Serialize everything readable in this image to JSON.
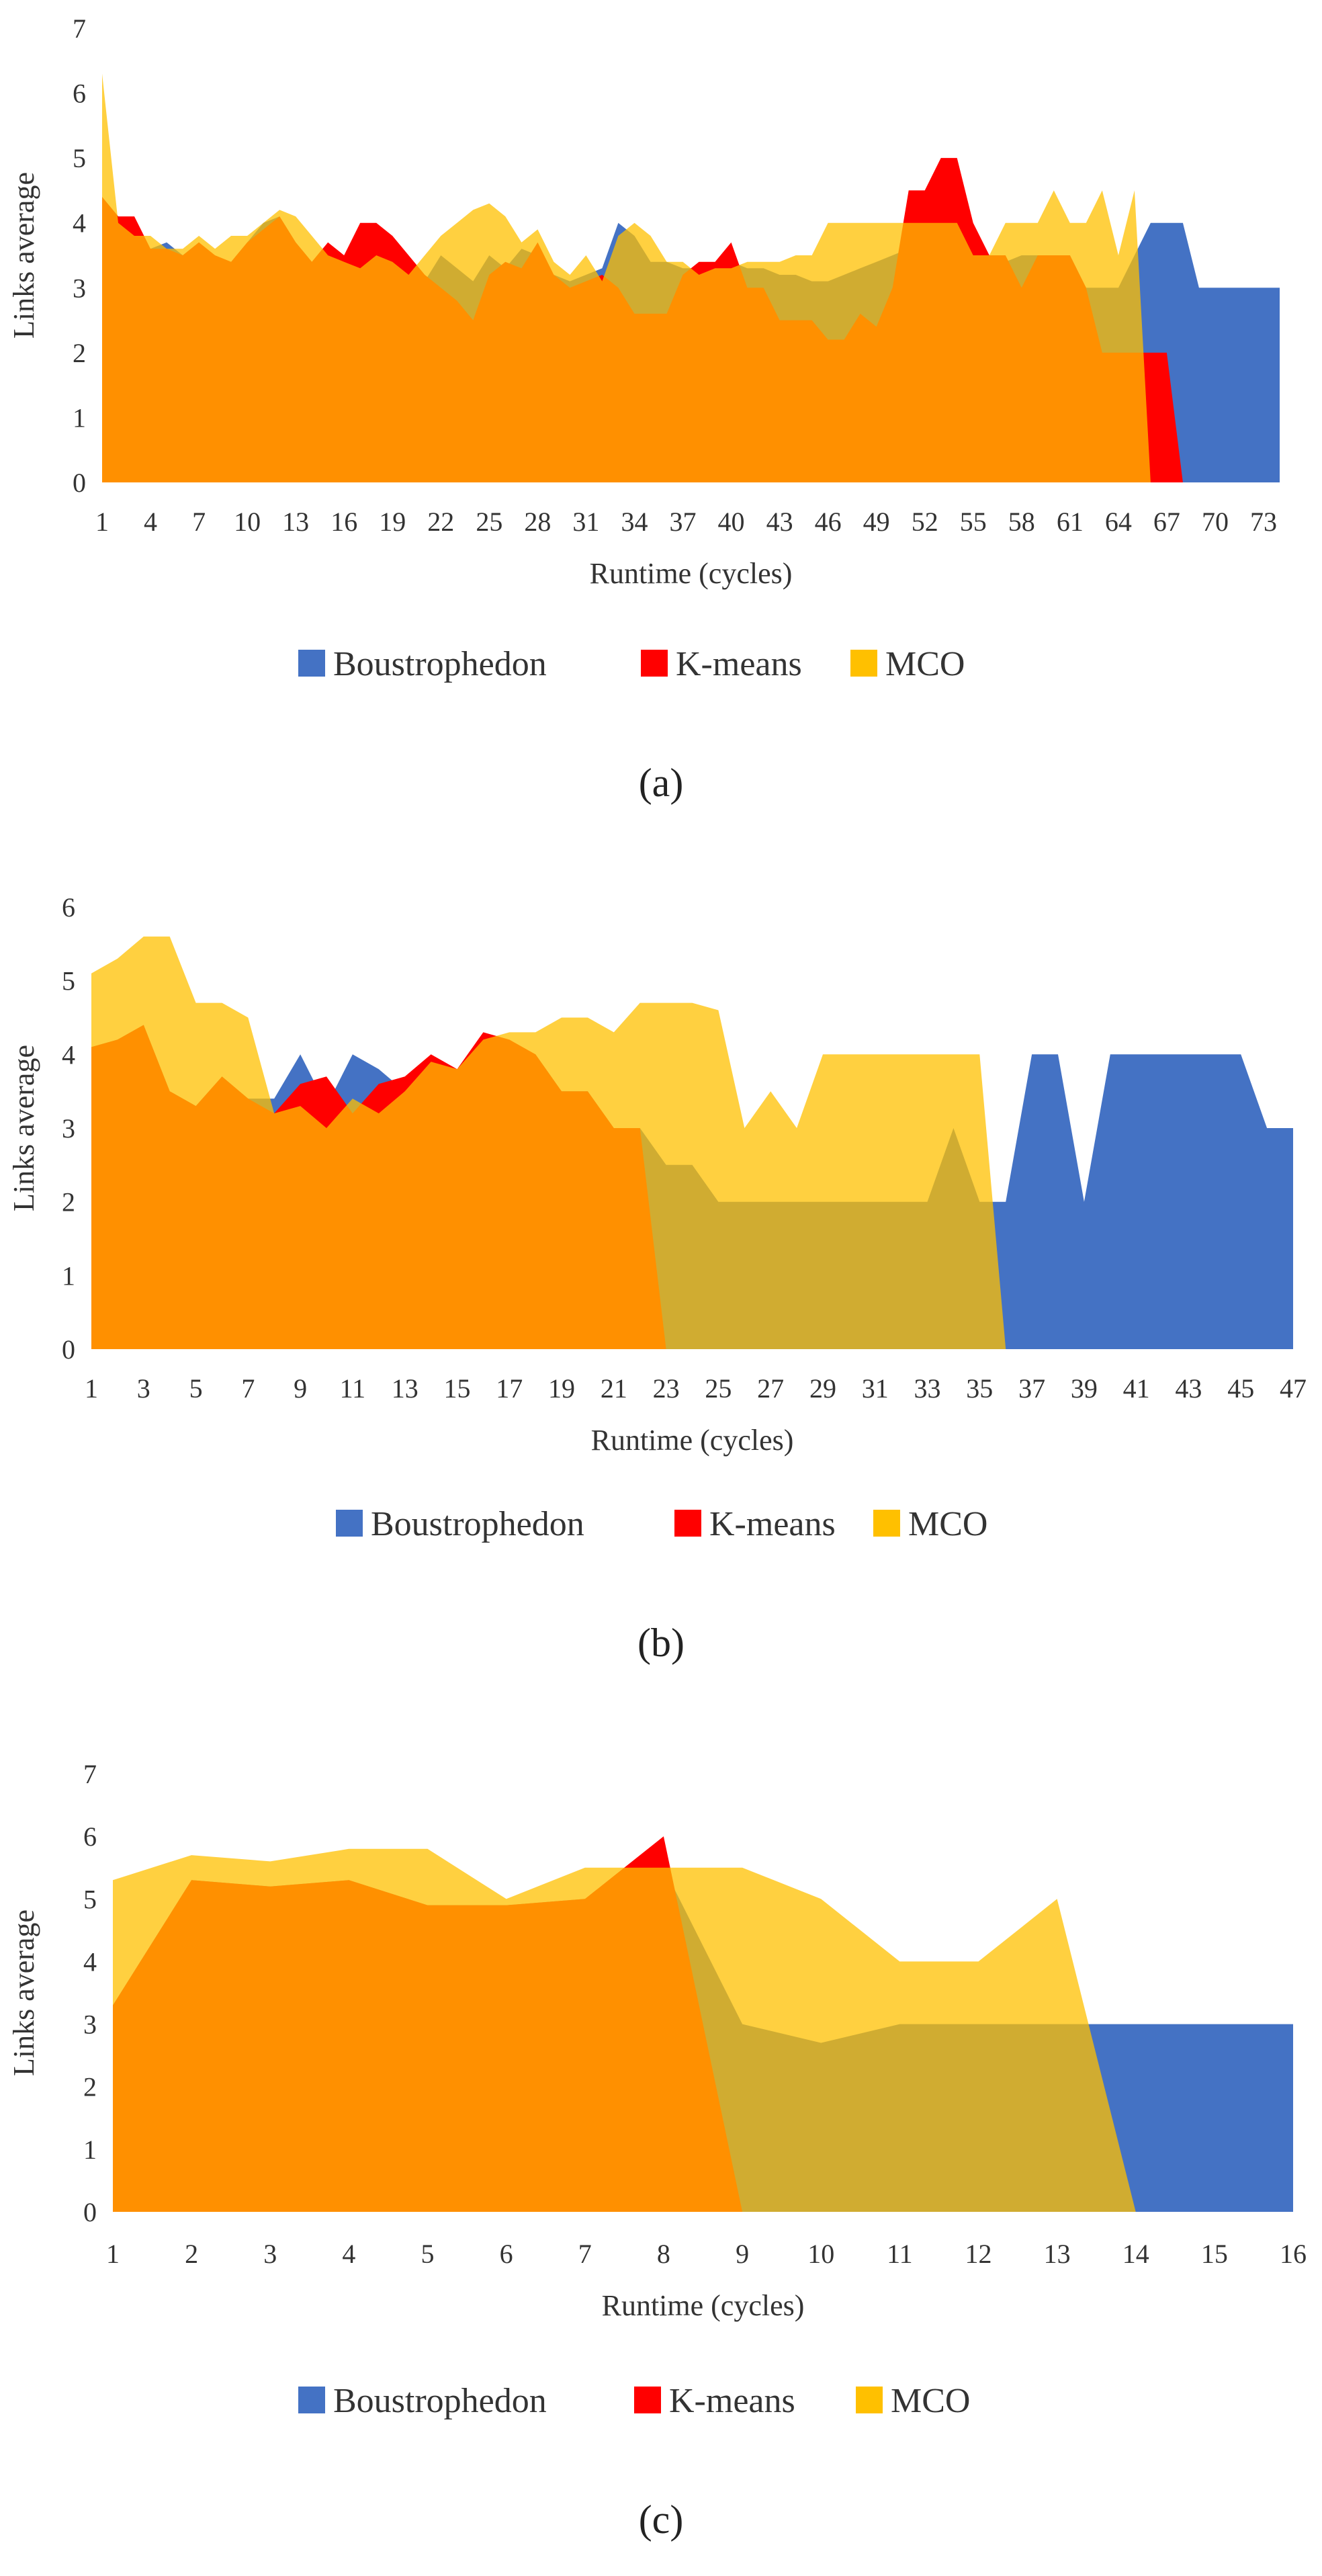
{
  "chart_data": [
    {
      "type": "area",
      "panel": "a",
      "caption": "(a)",
      "xlabel": "Runtime (cycles)",
      "ylabel": "Links average",
      "ylim": [
        0,
        7
      ],
      "yticks": [
        "0",
        "1",
        "2",
        "3",
        "4",
        "5",
        "6",
        "7"
      ],
      "xlim": [
        1,
        74
      ],
      "xtick_labels": [
        "1",
        "4",
        "7",
        "10",
        "13",
        "16",
        "19",
        "22",
        "25",
        "28",
        "31",
        "34",
        "37",
        "40",
        "43",
        "46",
        "49",
        "52",
        "55",
        "58",
        "61",
        "64",
        "67",
        "70",
        "73"
      ],
      "legend": [
        "Boustrophedon",
        "K-means",
        "MCO"
      ],
      "series": [
        {
          "name": "Boustrophedon",
          "color": "#4472C4",
          "values": [
            4.4,
            4.1,
            3.9,
            3.6,
            3.7,
            3.5,
            3.7,
            3.4,
            3.4,
            3.7,
            4.0,
            4.1,
            3.7,
            3.4,
            3.3,
            3.5,
            3.4,
            3.6,
            3.3,
            3.2,
            3.1,
            3.5,
            3.3,
            3.1,
            3.5,
            3.3,
            3.6,
            3.5,
            3.2,
            3.1,
            3.2,
            3.3,
            4.0,
            3.8,
            3.4,
            3.4,
            3.3,
            3.3,
            3.3,
            3.4,
            3.3,
            3.3,
            3.2,
            3.2,
            3.1,
            3.1,
            3.2,
            3.3,
            3.4,
            3.5,
            3.6,
            3.6,
            3.7,
            3.6,
            3.5,
            3.5,
            3.4,
            3.5,
            3.5,
            3.5,
            3.5,
            3.0,
            3.0,
            3.0,
            3.5,
            4.0,
            4.0,
            4.0,
            3.0,
            3.0,
            3.0,
            3.0,
            3.0,
            3.0
          ]
        },
        {
          "name": "K-means",
          "color": "#FF0000",
          "values": [
            4.4,
            4.1,
            4.1,
            3.6,
            3.6,
            3.5,
            3.7,
            3.5,
            3.4,
            3.7,
            3.9,
            4.1,
            3.7,
            3.4,
            3.7,
            3.5,
            4.0,
            4.0,
            3.8,
            3.5,
            3.2,
            3.0,
            2.8,
            2.5,
            3.2,
            3.4,
            3.3,
            3.7,
            3.2,
            3.0,
            3.1,
            3.2,
            3.0,
            2.6,
            2.6,
            2.6,
            3.2,
            3.4,
            3.4,
            3.7,
            3.0,
            3.0,
            2.5,
            2.5,
            2.5,
            2.2,
            2.2,
            2.6,
            2.4,
            3.0,
            4.5,
            4.5,
            5.0,
            5.0,
            4.0,
            3.5,
            3.5,
            3.0,
            3.5,
            3.5,
            3.5,
            3.0,
            2.0,
            2.0,
            2.0,
            2.0,
            2.0,
            0,
            0,
            0,
            0,
            0,
            0,
            0
          ]
        },
        {
          "name": "MCO",
          "color": "#FFC000",
          "values": [
            6.3,
            4.0,
            3.8,
            3.8,
            3.6,
            3.6,
            3.8,
            3.6,
            3.8,
            3.8,
            4.0,
            4.2,
            4.1,
            3.8,
            3.5,
            3.4,
            3.3,
            3.5,
            3.4,
            3.2,
            3.5,
            3.8,
            4.0,
            4.2,
            4.3,
            4.1,
            3.7,
            3.9,
            3.4,
            3.2,
            3.5,
            3.1,
            3.8,
            4.0,
            3.8,
            3.4,
            3.4,
            3.2,
            3.3,
            3.3,
            3.4,
            3.4,
            3.4,
            3.5,
            3.5,
            4.0,
            4.0,
            4.0,
            4.0,
            4.0,
            4.0,
            4.0,
            4.0,
            4.0,
            3.5,
            3.5,
            4.0,
            4.0,
            4.0,
            4.5,
            4.0,
            4.0,
            4.5,
            3.5,
            4.5,
            0,
            0,
            0,
            0,
            0,
            0,
            0,
            0,
            0
          ]
        }
      ]
    },
    {
      "type": "area",
      "panel": "b",
      "caption": "(b)",
      "xlabel": "Runtime (cycles)",
      "ylabel": "Links average",
      "ylim": [
        0,
        6
      ],
      "yticks": [
        "0",
        "1",
        "2",
        "3",
        "4",
        "5",
        "6"
      ],
      "xlim": [
        1,
        47
      ],
      "xtick_labels": [
        "1",
        "3",
        "5",
        "7",
        "9",
        "11",
        "13",
        "15",
        "17",
        "19",
        "21",
        "23",
        "25",
        "27",
        "29",
        "31",
        "33",
        "35",
        "37",
        "39",
        "41",
        "43",
        "45",
        "47"
      ],
      "legend": [
        "Boustrophedon",
        "K-means",
        "MCO"
      ],
      "series": [
        {
          "name": "Boustrophedon",
          "color": "#4472C4",
          "values": [
            4.1,
            4.2,
            4.4,
            3.5,
            3.3,
            3.7,
            3.4,
            3.4,
            4.0,
            3.3,
            4.0,
            3.8,
            3.5,
            3.9,
            3.5,
            4.1,
            4.1,
            4.0,
            3.5,
            3.5,
            3.0,
            3.0,
            2.5,
            2.5,
            2.0,
            2.0,
            2.0,
            2.0,
            2.0,
            2.0,
            2.0,
            2.0,
            2.0,
            3.0,
            2.0,
            2.0,
            4.0,
            4.0,
            2.0,
            4.0,
            4.0,
            4.0,
            4.0,
            4.0,
            4.0,
            3.0,
            3.0
          ]
        },
        {
          "name": "K-means",
          "color": "#FF0000",
          "values": [
            4.1,
            4.2,
            4.4,
            3.5,
            3.3,
            3.7,
            3.4,
            3.2,
            3.6,
            3.7,
            3.2,
            3.6,
            3.7,
            4.0,
            3.8,
            4.3,
            4.2,
            4.0,
            3.5,
            3.5,
            3.0,
            3.0,
            0,
            0,
            0,
            0,
            0,
            0,
            0,
            0,
            0,
            0,
            0,
            0,
            0,
            0,
            0,
            0,
            0,
            0,
            0,
            0,
            0,
            0,
            0,
            0,
            0
          ]
        },
        {
          "name": "MCO",
          "color": "#FFC000",
          "values": [
            5.1,
            5.3,
            5.6,
            5.6,
            4.7,
            4.7,
            4.5,
            3.2,
            3.3,
            3.0,
            3.4,
            3.2,
            3.5,
            3.9,
            3.8,
            4.2,
            4.3,
            4.3,
            4.5,
            4.5,
            4.3,
            4.7,
            4.7,
            4.7,
            4.6,
            3.0,
            3.5,
            3.0,
            4.0,
            4.0,
            4.0,
            4.0,
            4.0,
            4.0,
            4.0,
            0,
            0,
            0,
            0,
            0,
            0,
            0,
            0,
            0,
            0,
            0,
            0
          ]
        }
      ]
    },
    {
      "type": "area",
      "panel": "c",
      "caption": "(c)",
      "xlabel": "Runtime (cycles)",
      "ylabel": "Links average",
      "ylim": [
        0,
        7
      ],
      "yticks": [
        "0",
        "1",
        "2",
        "3",
        "4",
        "5",
        "6",
        "7"
      ],
      "xlim": [
        1,
        16
      ],
      "xtick_labels": [
        "1",
        "2",
        "3",
        "4",
        "5",
        "6",
        "7",
        "8",
        "9",
        "10",
        "11",
        "12",
        "13",
        "14",
        "15",
        "16"
      ],
      "legend": [
        "Boustrophedon",
        "K-means",
        "MCO"
      ],
      "series": [
        {
          "name": "Boustrophedon",
          "color": "#4472C4",
          "values": [
            3.3,
            5.3,
            5.2,
            5.3,
            4.9,
            4.9,
            5.0,
            5.5,
            3.0,
            2.7,
            3.0,
            3.0,
            3.0,
            3.0,
            3.0,
            3.0
          ]
        },
        {
          "name": "K-means",
          "color": "#FF0000",
          "values": [
            3.3,
            5.3,
            5.2,
            5.3,
            4.9,
            4.9,
            5.0,
            6.0,
            0,
            0,
            0,
            0,
            0,
            0,
            0,
            0
          ]
        },
        {
          "name": "MCO",
          "color": "#FFC000",
          "values": [
            5.3,
            5.7,
            5.6,
            5.8,
            5.8,
            5.0,
            5.5,
            5.5,
            5.5,
            5.0,
            4.0,
            4.0,
            5.0,
            0,
            0,
            0
          ]
        }
      ]
    }
  ]
}
